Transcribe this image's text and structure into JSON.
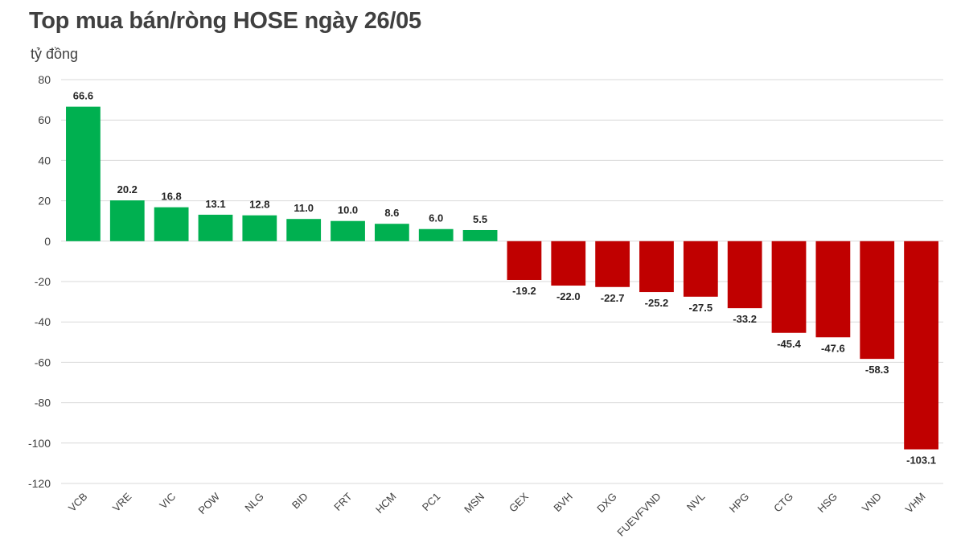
{
  "chart_data": {
    "type": "bar",
    "title": "Top mua bán/ròng HOSE ngày 26/05",
    "ylabel": "tỷ đồng",
    "ylim": [
      -120,
      80
    ],
    "yticks": [
      80,
      60,
      40,
      20,
      0,
      -20,
      -40,
      -60,
      -80,
      -100,
      -120
    ],
    "grid": true,
    "categories": [
      "VCB",
      "VRE",
      "VIC",
      "POW",
      "NLG",
      "BID",
      "FRT",
      "HCM",
      "PC1",
      "MSN",
      "GEX",
      "BVH",
      "DXG",
      "FUEVFVND",
      "NVL",
      "HPG",
      "CTG",
      "HSG",
      "VND",
      "VHM"
    ],
    "values": [
      66.6,
      20.2,
      16.8,
      13.1,
      12.8,
      11.0,
      10.0,
      8.6,
      6.0,
      5.5,
      -19.2,
      -22.0,
      -22.7,
      -25.2,
      -27.5,
      -33.2,
      -45.4,
      -47.6,
      -58.3,
      -103.1
    ],
    "value_labels": [
      "66.6",
      "20.2",
      "16.8",
      "13.1",
      "12.8",
      "11.0",
      "10.0",
      "8.6",
      "6.0",
      "5.5",
      "-19.2",
      "-22.0",
      "-22.7",
      "-25.2",
      "-27.5",
      "-33.2",
      "-45.4",
      "-47.6",
      "-58.3",
      "-103.1"
    ],
    "colors": {
      "positive": "#00b050",
      "negative": "#c00000",
      "grid": "#d9d9d9"
    }
  }
}
